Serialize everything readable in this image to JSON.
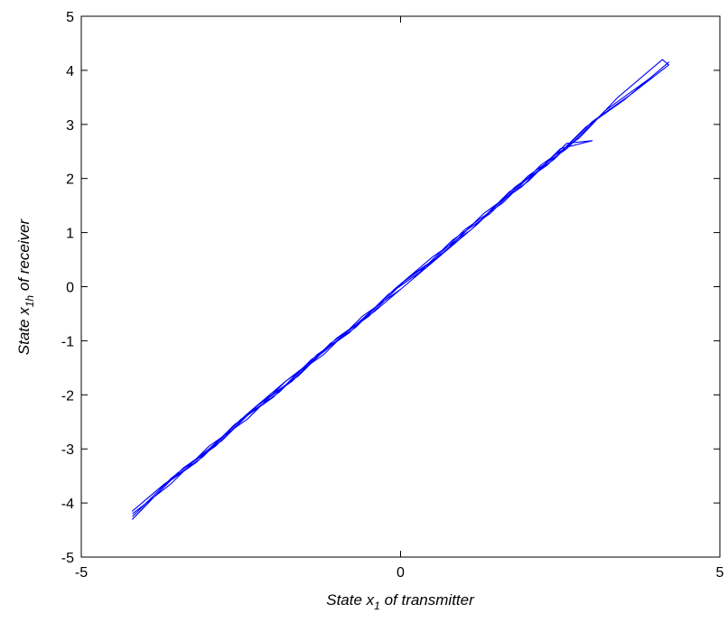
{
  "chart_data": {
    "type": "line",
    "title": "",
    "xlabel": {
      "prefix": "State x",
      "subscript": "1",
      "suffix": " of transmitter"
    },
    "ylabel": {
      "prefix": "State x",
      "subscript": "1h",
      "suffix": " of receiver"
    },
    "xlim": [
      -5,
      5
    ],
    "ylim": [
      -5,
      5
    ],
    "xticks": [
      -5,
      0,
      5
    ],
    "yticks": [
      -5,
      -4,
      -3,
      -2,
      -1,
      0,
      1,
      2,
      3,
      4,
      5
    ],
    "xtick_labels": [
      "-5",
      "0",
      "5"
    ],
    "ytick_labels": [
      "-5",
      "-4",
      "-3",
      "-2",
      "-1",
      "0",
      "1",
      "2",
      "3",
      "4",
      "5"
    ],
    "grid": false,
    "legend": "none",
    "series": [
      {
        "color": "#0000ff",
        "x": [
          -4.2,
          -3.6,
          -3.0,
          -2.4,
          -1.8,
          -1.2,
          -0.6,
          0.0,
          0.6,
          1.2,
          1.8,
          2.4,
          3.0,
          3.6,
          4.2,
          4.1,
          3.4,
          2.8,
          2.2,
          1.6,
          1.0,
          0.4,
          -0.2,
          -0.8,
          -1.4,
          -2.0,
          -2.6,
          -3.2,
          -3.8,
          -4.2,
          -3.7,
          -3.1,
          -2.5,
          -1.9,
          -1.3,
          -0.7,
          -0.1,
          0.5,
          1.1,
          1.7,
          2.3,
          2.9,
          3.5,
          4.2,
          3.9,
          3.2,
          2.6,
          2.0,
          1.4,
          0.8,
          0.2,
          -0.4,
          -1.0,
          -1.6,
          -2.2,
          -2.8,
          -3.4,
          -4.0,
          -4.2,
          -3.5,
          -2.9,
          -2.3,
          -1.7,
          -1.1,
          -0.5,
          0.1,
          0.7,
          1.3,
          1.9,
          2.5,
          3.0,
          2.6,
          2.0,
          1.3,
          0.6,
          0.0,
          -0.6,
          -1.2,
          -1.8,
          -2.4,
          -3.0,
          -3.6,
          -4.2
        ],
        "y": [
          -4.25,
          -3.55,
          -3.0,
          -2.35,
          -1.75,
          -1.2,
          -0.6,
          0.05,
          0.55,
          1.15,
          1.85,
          2.35,
          3.05,
          3.55,
          4.1,
          4.2,
          3.5,
          2.75,
          2.25,
          1.55,
          1.05,
          0.35,
          -0.15,
          -0.85,
          -1.35,
          -2.05,
          -2.55,
          -3.25,
          -3.75,
          -4.15,
          -3.65,
          -3.15,
          -2.45,
          -1.95,
          -1.25,
          -0.75,
          -0.05,
          0.55,
          1.05,
          1.75,
          2.25,
          2.95,
          3.45,
          4.15,
          3.85,
          3.25,
          2.55,
          2.05,
          1.35,
          0.85,
          0.15,
          -0.45,
          -0.95,
          -1.65,
          -2.15,
          -2.85,
          -3.35,
          -4.05,
          -4.3,
          -3.45,
          -2.95,
          -2.25,
          -1.75,
          -1.05,
          -0.55,
          0.15,
          0.65,
          1.35,
          1.85,
          2.55,
          2.7,
          2.65,
          1.95,
          1.35,
          0.55,
          -0.05,
          -0.55,
          -1.25,
          -1.75,
          -2.45,
          -2.95,
          -3.65,
          -4.2
        ]
      }
    ]
  }
}
